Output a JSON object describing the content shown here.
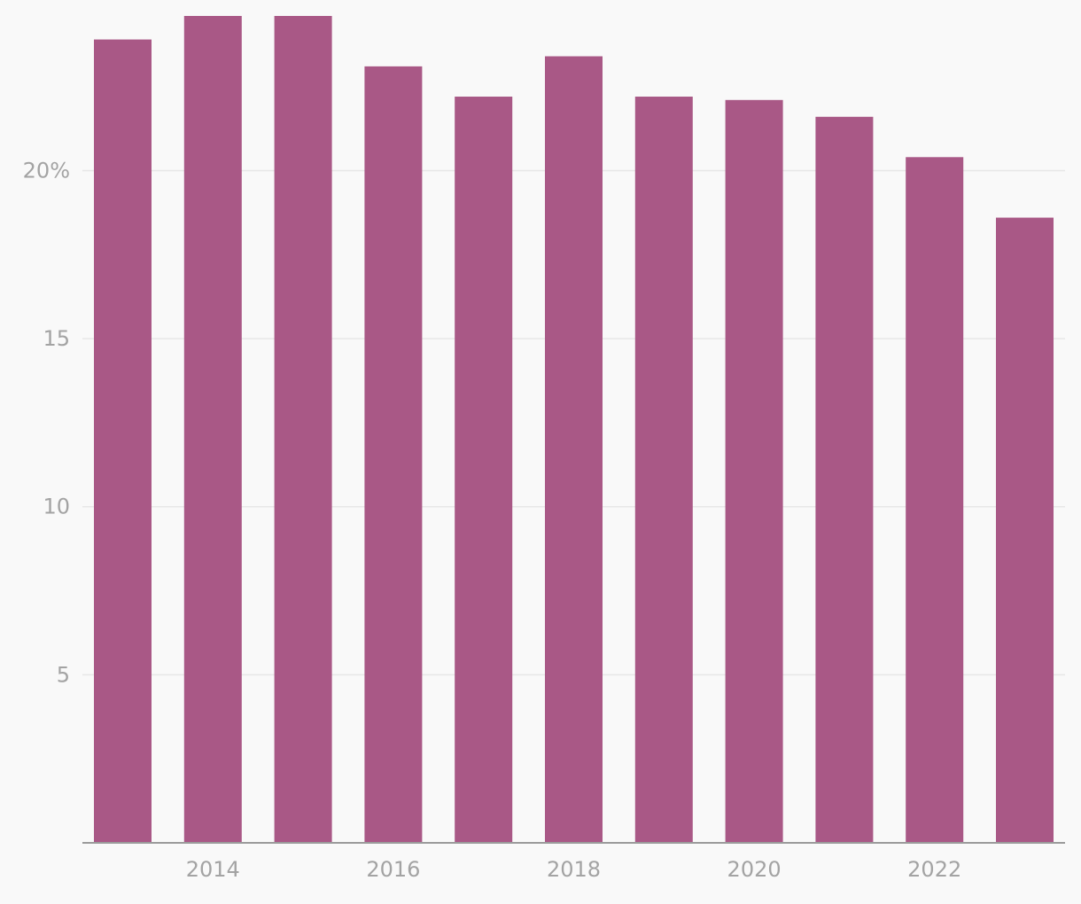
{
  "chart_data": {
    "type": "bar",
    "categories": [
      "2013",
      "2014",
      "2015",
      "2016",
      "2017",
      "2018",
      "2019",
      "2020",
      "2021",
      "2022",
      "2023"
    ],
    "series": [
      {
        "values": [
          23.9,
          24.6,
          24.6,
          23.1,
          22.2,
          23.4,
          22.2,
          22.1,
          21.6,
          20.4,
          18.6
        ],
        "color": "#a95886"
      }
    ],
    "ylim": [
      0,
      24.6
    ],
    "y_ticks": [
      {
        "value": 5,
        "label": "5"
      },
      {
        "value": 10,
        "label": "10"
      },
      {
        "value": 15,
        "label": "15"
      },
      {
        "value": 20,
        "label": "20%"
      }
    ],
    "x_tick_labels": [
      "2014",
      "2016",
      "2018",
      "2020",
      "2022"
    ],
    "title": "",
    "xlabel": "",
    "ylabel": "",
    "grid": true,
    "legend": "none"
  }
}
